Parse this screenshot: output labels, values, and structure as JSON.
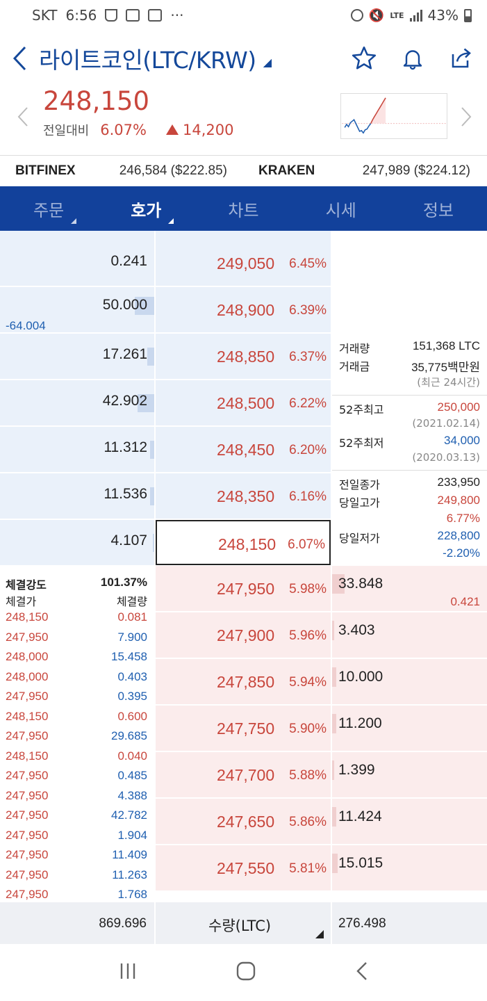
{
  "status_bar": {
    "carrier": "SKT",
    "time": "6:56",
    "more": "···",
    "network": "LTE",
    "battery": "43%"
  },
  "header": {
    "title": "라이트코인(LTC/KRW)"
  },
  "price": {
    "current": "248,150",
    "label": "전일대비",
    "change_pct": "6.07%",
    "change_abs": "14,200"
  },
  "colors": {
    "rise": "#c8463c",
    "fall": "#1f5fb0",
    "tab_bg": "#12419b",
    "title": "#14489a"
  },
  "exchanges": [
    {
      "name": "BITFINEX",
      "value": "246,584 ($222.85)"
    },
    {
      "name": "KRAKEN",
      "value": "247,989 ($224.12)"
    }
  ],
  "tabs": [
    {
      "label": "주문",
      "caret": true,
      "active": false
    },
    {
      "label": "호가",
      "caret": true,
      "active": true
    },
    {
      "label": "차트",
      "caret": false,
      "active": false
    },
    {
      "label": "시세",
      "caret": false,
      "active": false
    },
    {
      "label": "정보",
      "caret": false,
      "active": false
    }
  ],
  "asks": [
    {
      "qty": "0.241",
      "price": "249,050",
      "pct": "6.45%",
      "level": 0
    },
    {
      "qty": "50.000",
      "price": "248,900",
      "pct": "6.39%",
      "level": 1.0,
      "change": "-64.004"
    },
    {
      "qty": "17.261",
      "price": "248,850",
      "pct": "6.37%",
      "level": 0.34
    },
    {
      "qty": "42.902",
      "price": "248,500",
      "pct": "6.22%",
      "level": 0.86
    },
    {
      "qty": "11.312",
      "price": "248,450",
      "pct": "6.20%",
      "level": 0.23
    },
    {
      "qty": "11.536",
      "price": "248,350",
      "pct": "6.16%",
      "level": 0.23
    },
    {
      "qty": "4.107",
      "price": "248,150",
      "pct": "6.07%",
      "level": 0.08,
      "current": true
    }
  ],
  "bids": [
    {
      "qty": "33.848",
      "price": "247,950",
      "pct": "5.98%",
      "level": 0.66,
      "change": "0.421"
    },
    {
      "qty": "3.403",
      "price": "247,900",
      "pct": "5.96%",
      "level": 0.07
    },
    {
      "qty": "10.000",
      "price": "247,850",
      "pct": "5.94%",
      "level": 0.2
    },
    {
      "qty": "11.200",
      "price": "247,750",
      "pct": "5.90%",
      "level": 0.22
    },
    {
      "qty": "1.399",
      "price": "247,700",
      "pct": "5.88%",
      "level": 0.03
    },
    {
      "qty": "11.424",
      "price": "247,650",
      "pct": "5.86%",
      "level": 0.22
    },
    {
      "qty": "15.015",
      "price": "247,550",
      "pct": "5.81%",
      "level": 0.29
    }
  ],
  "info": {
    "volume_label": "거래량",
    "volume": "151,368 LTC",
    "amount_label": "거래금",
    "amount": "35,775백만원",
    "period_note": "(최근 24시간)",
    "high52_label": "52주최고",
    "high52": "250,000",
    "high52_date": "(2021.02.14)",
    "low52_label": "52주최저",
    "low52": "34,000",
    "low52_date": "(2020.03.13)",
    "prev_close_label": "전일종가",
    "prev_close": "233,950",
    "day_high_label": "당일고가",
    "day_high": "249,800",
    "day_high_pct": "6.77%",
    "day_low_label": "당일저가",
    "day_low": "228,800",
    "day_low_pct": "-2.20%"
  },
  "trades": {
    "strength_label": "체결강도",
    "strength": "101.37%",
    "price_header": "체결가",
    "qty_header": "체결량",
    "rows": [
      {
        "price": "248,150",
        "qty": "0.081",
        "side": "buy"
      },
      {
        "price": "247,950",
        "qty": "7.900",
        "side": "sell"
      },
      {
        "price": "248,000",
        "qty": "15.458",
        "side": "sell"
      },
      {
        "price": "248,000",
        "qty": "0.403",
        "side": "sell"
      },
      {
        "price": "247,950",
        "qty": "0.395",
        "side": "sell"
      },
      {
        "price": "248,150",
        "qty": "0.600",
        "side": "buy"
      },
      {
        "price": "247,950",
        "qty": "29.685",
        "side": "sell"
      },
      {
        "price": "248,150",
        "qty": "0.040",
        "side": "buy"
      },
      {
        "price": "247,950",
        "qty": "0.485",
        "side": "sell"
      },
      {
        "price": "247,950",
        "qty": "4.388",
        "side": "sell"
      },
      {
        "price": "247,950",
        "qty": "42.782",
        "side": "sell"
      },
      {
        "price": "247,950",
        "qty": "1.904",
        "side": "sell"
      },
      {
        "price": "247,950",
        "qty": "11.409",
        "side": "sell"
      },
      {
        "price": "247,950",
        "qty": "11.263",
        "side": "sell"
      },
      {
        "price": "247,950",
        "qty": "1.768",
        "side": "sell"
      }
    ]
  },
  "footer": {
    "ask_total": "869.696",
    "unit_label": "수량(LTC)",
    "bid_total": "276.498"
  },
  "sparkline": {
    "values": [
      48,
      44,
      47,
      42,
      40,
      38,
      43,
      48,
      53,
      52,
      55,
      51,
      50,
      46,
      43,
      38,
      34,
      30,
      26,
      22,
      18,
      14,
      10
    ]
  }
}
